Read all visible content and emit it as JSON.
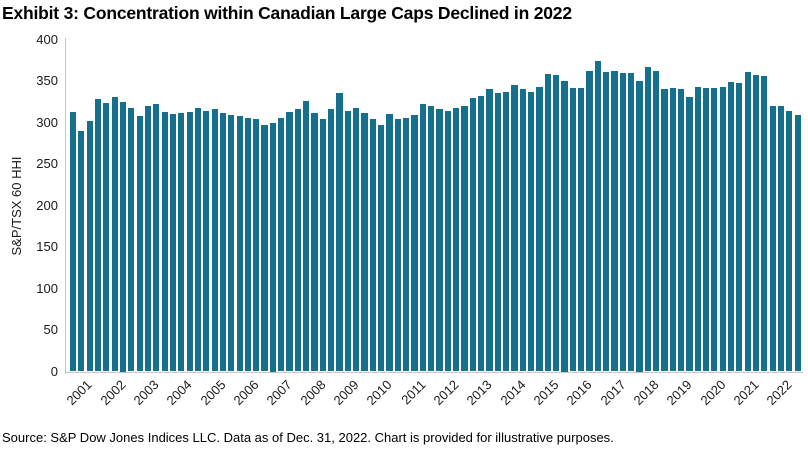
{
  "header": {
    "title": "Exhibit 3: Concentration within Canadian Large Caps Declined in 2022"
  },
  "footer": {
    "source": "Source: S&P Dow Jones Indices LLC. Data as of Dec. 31, 2022. Chart is provided for illustrative purposes."
  },
  "chart_data": {
    "type": "bar",
    "title": "Exhibit 3: Concentration within Canadian Large Caps Declined in 2022",
    "ylabel": "S&P/TSX 60 HHI",
    "xlabel": "",
    "ylim": [
      0,
      400
    ],
    "yticks": [
      0,
      50,
      100,
      150,
      200,
      250,
      300,
      350,
      400
    ],
    "grid": false,
    "legend_position": "none",
    "frequency": "quarterly",
    "x_tick_labels": [
      "2001",
      "2002",
      "2003",
      "2004",
      "2005",
      "2006",
      "2007",
      "2008",
      "2009",
      "2010",
      "2011",
      "2012",
      "2013",
      "2014",
      "2015",
      "2016",
      "2017",
      "2018",
      "2019",
      "2020",
      "2021",
      "2022"
    ],
    "series": [
      {
        "name": "S&P/TSX 60 HHI",
        "values": [
          313,
          290,
          302,
          328,
          324,
          331,
          325,
          318,
          308,
          320,
          322,
          313,
          310,
          311,
          313,
          318,
          314,
          316,
          312,
          309,
          308,
          305,
          304,
          297,
          300,
          305,
          313,
          316,
          326,
          312,
          304,
          316,
          335,
          314,
          318,
          312,
          304,
          297,
          310,
          304,
          306,
          309,
          322,
          320,
          316,
          314,
          317,
          320,
          329,
          332,
          340,
          335,
          337,
          345,
          340,
          337,
          343,
          359,
          357,
          350,
          341,
          342,
          362,
          374,
          361,
          362,
          360,
          360,
          350,
          367,
          362,
          340,
          341,
          340,
          331,
          343,
          341,
          341,
          343,
          349,
          348,
          361,
          357,
          356,
          320,
          320,
          314,
          309
        ]
      }
    ],
    "colors": {
      "bar": "#15708E",
      "axis_line": "#C6C6C6",
      "text": "#1A1A1A"
    }
  }
}
